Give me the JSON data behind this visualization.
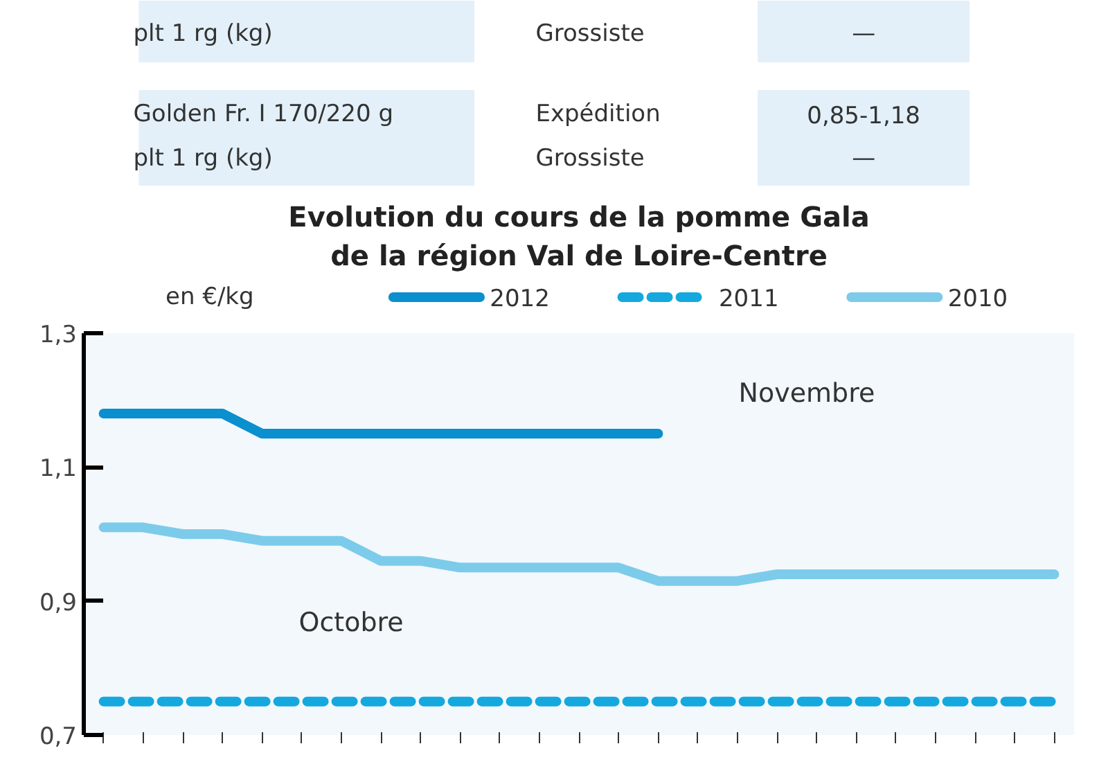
{
  "chart_data": {
    "type": "line",
    "title": "Evolution du cours de la pomme Gala\nde la région Val de Loire-Centre",
    "ylabel": "en €/kg",
    "annotations": [
      "plt 1 rg (kg)",
      "Grossiste",
      "—",
      "Golden Fr. I 170/220 g",
      "Expédition",
      "0,85-1,18",
      "plt 1 rg (kg)",
      "Grossiste",
      "—",
      "Octobre",
      "Novembre"
    ],
    "categories": [
      null,
      null,
      null,
      null,
      null,
      null,
      null,
      null,
      null,
      null,
      null,
      null,
      null,
      null,
      null,
      null,
      null,
      null,
      null,
      null,
      null,
      null,
      null,
      null,
      null
    ],
    "series": [
      {
        "name": "2012",
        "color": "#0a8fcf",
        "line_style": "solid",
        "values": [
          1.18,
          1.18,
          1.18,
          1.18,
          1.15,
          1.15,
          1.15,
          1.15,
          1.15,
          1.15,
          1.15,
          1.15,
          1.15,
          1.15,
          1.15,
          null,
          null,
          null,
          null,
          null,
          null,
          null,
          null,
          null,
          null
        ]
      },
      {
        "name": "2011",
        "color": "#14a8de",
        "line_style": "dashed",
        "values": [
          0.75,
          0.75,
          0.75,
          0.75,
          0.75,
          0.75,
          0.75,
          0.75,
          0.75,
          0.75,
          0.75,
          0.75,
          0.75,
          0.75,
          0.75,
          0.75,
          0.75,
          0.75,
          0.75,
          0.75,
          0.75,
          0.75,
          0.75,
          0.75,
          0.75
        ]
      },
      {
        "name": "2010",
        "color": "#7dcbea",
        "line_style": "solid",
        "values": [
          1.01,
          1.01,
          1.0,
          1.0,
          0.99,
          0.99,
          0.99,
          0.96,
          0.96,
          0.95,
          0.95,
          0.95,
          0.95,
          0.95,
          0.93,
          0.93,
          0.93,
          0.94,
          0.94,
          0.94,
          0.94,
          0.94,
          0.94,
          0.94,
          0.94
        ]
      }
    ],
    "ylim": [
      0.7,
      1.3
    ],
    "yticks": [
      {
        "value": 0.7,
        "label": "0,7"
      },
      {
        "value": 0.9,
        "label": "0,9"
      },
      {
        "value": 1.1,
        "label": "1,1"
      },
      {
        "value": 1.3,
        "label": "1,3"
      }
    ],
    "legend": "top"
  }
}
